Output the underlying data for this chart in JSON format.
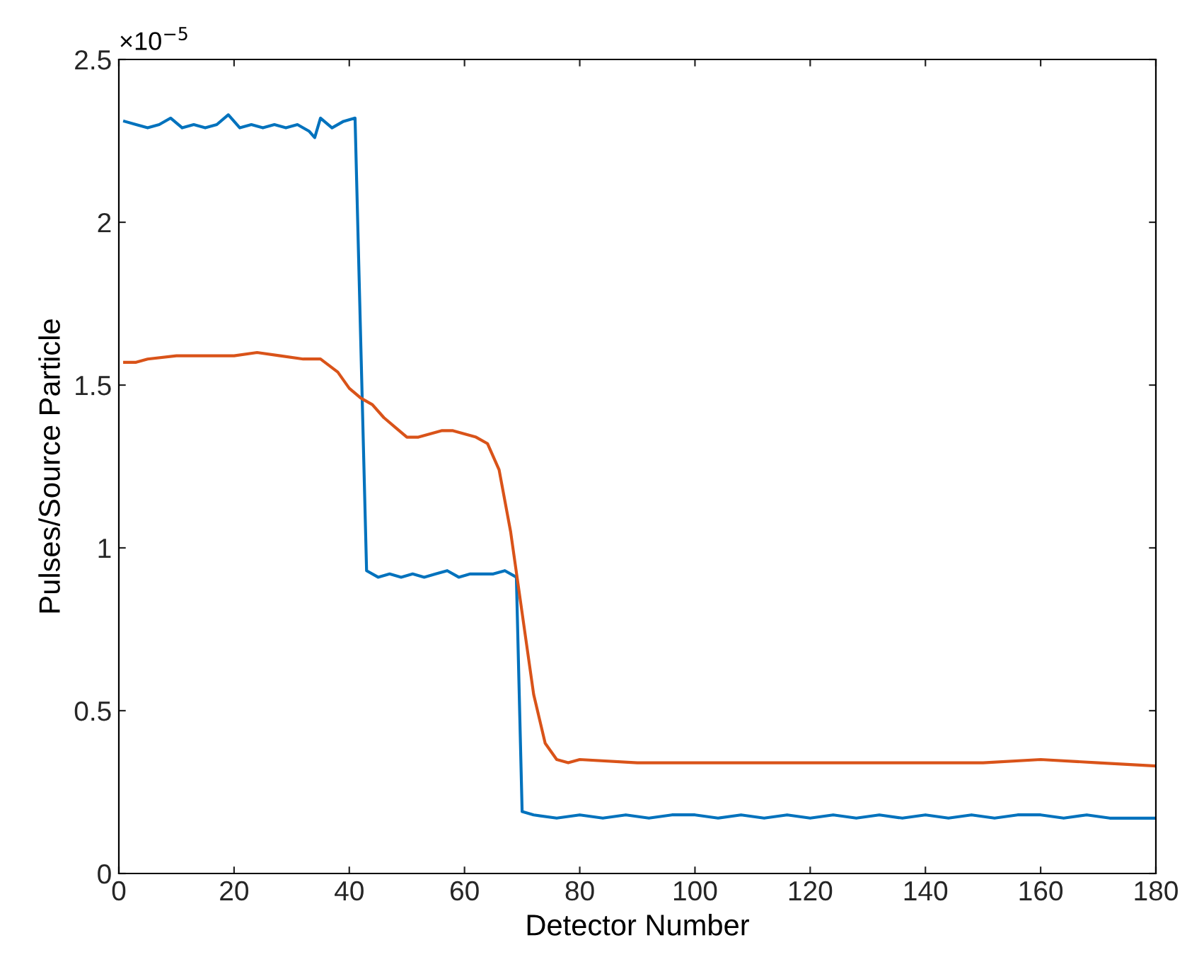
{
  "chart_data": {
    "type": "line",
    "xlabel": "Detector Number",
    "ylabel": "Pulses/Source Particle",
    "xlim": [
      0,
      180
    ],
    "xticks": [
      0,
      20,
      40,
      60,
      80,
      100,
      120,
      140,
      160,
      180
    ],
    "ylim": [
      0,
      2.5
    ],
    "yticks": [
      0,
      0.5,
      1,
      1.5,
      2,
      2.5
    ],
    "annotations": [
      "×10$^{−5}$"
    ],
    "grid": false,
    "marker": "none",
    "line_style": "solid",
    "series": [
      {
        "color": "#0072bd",
        "x": [
          1,
          3,
          5,
          7,
          9,
          11,
          13,
          15,
          17,
          19,
          21,
          23,
          25,
          27,
          29,
          31,
          33,
          34,
          35,
          37,
          39,
          41,
          43,
          45,
          47,
          49,
          51,
          53,
          55,
          57,
          59,
          61,
          63,
          65,
          67,
          69,
          70,
          72,
          76,
          80,
          84,
          88,
          92,
          96,
          100,
          104,
          108,
          112,
          116,
          120,
          124,
          128,
          132,
          136,
          140,
          144,
          148,
          152,
          156,
          160,
          164,
          168,
          172,
          176,
          180
        ],
        "values": [
          2.31,
          2.3,
          2.29,
          2.3,
          2.32,
          2.29,
          2.3,
          2.29,
          2.3,
          2.33,
          2.29,
          2.3,
          2.29,
          2.3,
          2.29,
          2.3,
          2.28,
          2.26,
          2.32,
          2.29,
          2.31,
          2.32,
          0.93,
          0.91,
          0.92,
          0.91,
          0.92,
          0.91,
          0.92,
          0.93,
          0.91,
          0.92,
          0.92,
          0.92,
          0.93,
          0.91,
          0.19,
          0.18,
          0.17,
          0.18,
          0.17,
          0.18,
          0.17,
          0.18,
          0.18,
          0.17,
          0.18,
          0.17,
          0.18,
          0.17,
          0.18,
          0.17,
          0.18,
          0.17,
          0.18,
          0.17,
          0.18,
          0.17,
          0.18,
          0.18,
          0.17,
          0.18,
          0.17,
          0.17,
          0.17
        ]
      },
      {
        "color": "#d95319",
        "x": [
          1,
          3,
          5,
          10,
          15,
          20,
          24,
          28,
          32,
          35,
          38,
          40,
          42,
          44,
          46,
          48,
          50,
          52,
          54,
          56,
          58,
          60,
          62,
          64,
          66,
          68,
          70,
          72,
          74,
          76,
          78,
          80,
          90,
          100,
          110,
          120,
          130,
          140,
          150,
          160,
          170,
          180
        ],
        "values": [
          1.57,
          1.57,
          1.58,
          1.59,
          1.59,
          1.59,
          1.6,
          1.59,
          1.58,
          1.58,
          1.54,
          1.49,
          1.46,
          1.44,
          1.4,
          1.37,
          1.34,
          1.34,
          1.35,
          1.36,
          1.36,
          1.35,
          1.34,
          1.32,
          1.24,
          1.05,
          0.8,
          0.55,
          0.4,
          0.35,
          0.34,
          0.35,
          0.34,
          0.34,
          0.34,
          0.34,
          0.34,
          0.34,
          0.34,
          0.35,
          0.34,
          0.33
        ]
      }
    ]
  }
}
